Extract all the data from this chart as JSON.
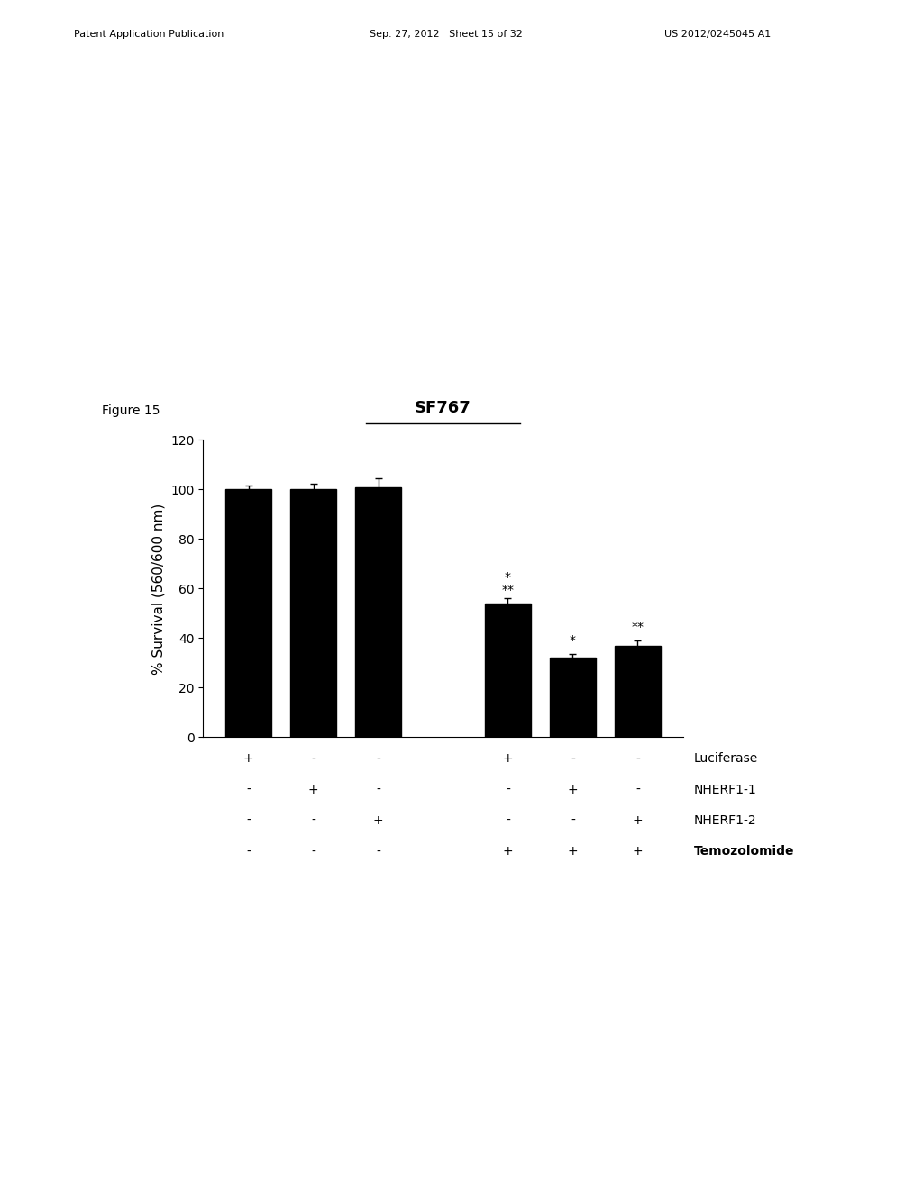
{
  "title": "SF767",
  "ylabel": "% Survival (560/600 nm)",
  "bar_values": [
    100,
    100,
    101,
    54,
    32,
    37
  ],
  "bar_errors": [
    1.5,
    2.5,
    3.5,
    2.0,
    1.5,
    2.0
  ],
  "bar_color": "#000000",
  "bar_positions": [
    1,
    2,
    3,
    5,
    6,
    7
  ],
  "ylim": [
    0,
    120
  ],
  "yticks": [
    0,
    20,
    40,
    60,
    80,
    100,
    120
  ],
  "bar_width": 0.7,
  "table_rows": [
    "Luciferase",
    "NHERF1-1",
    "NHERF1-2",
    "Temozolomide"
  ],
  "table_data": [
    [
      "+",
      "-",
      "-",
      "+",
      "-",
      "-"
    ],
    [
      "-",
      "+",
      "-",
      "-",
      "+",
      "-"
    ],
    [
      "-",
      "-",
      "+",
      "-",
      "-",
      "+"
    ],
    [
      "-",
      "-",
      "-",
      "+",
      "+",
      "+"
    ]
  ],
  "figure_label": "Figure 15",
  "background_color": "#ffffff",
  "title_fontsize": 13,
  "axis_fontsize": 11,
  "tick_fontsize": 10,
  "table_fontsize": 10,
  "annotation_fontsize": 10
}
